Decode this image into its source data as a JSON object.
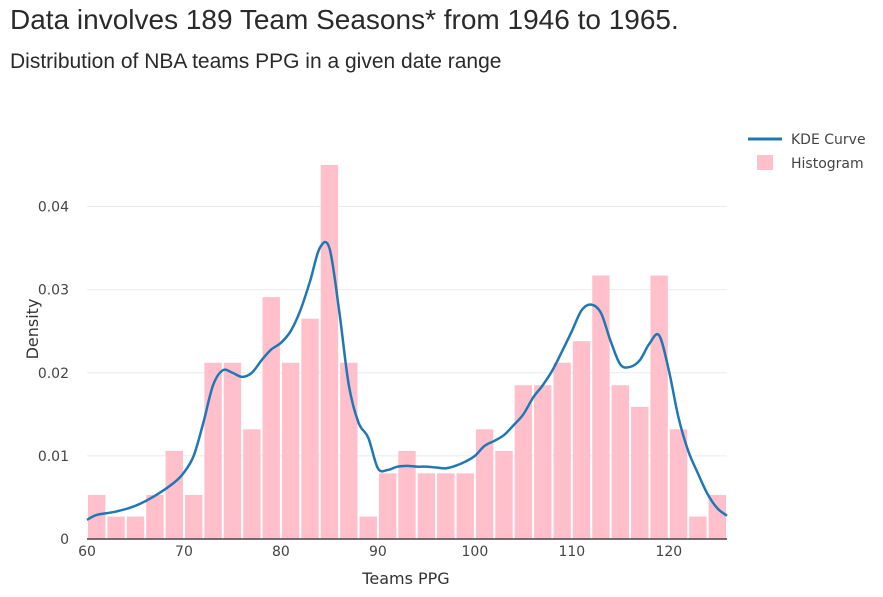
{
  "header": {
    "title": "Data involves 189 Team Seasons* from 1946 to 1965.",
    "subtitle": "Distribution of NBA teams PPG in a given date range"
  },
  "chart_data": {
    "type": "bar",
    "xlabel": "Teams PPG",
    "ylabel": "Density",
    "xlim": [
      60,
      126
    ],
    "ylim": [
      0,
      0.048
    ],
    "xticks": [
      60,
      70,
      80,
      90,
      100,
      110,
      120
    ],
    "xtick_labels": [
      "60",
      "70",
      "80",
      "90",
      "100",
      "110",
      "120"
    ],
    "yticks": [
      0,
      0.01,
      0.02,
      0.03,
      0.04
    ],
    "ytick_labels": [
      "0",
      "0.01",
      "0.02",
      "0.03",
      "0.04"
    ],
    "grid": true,
    "legend_position": "top-right",
    "bin_width": 2,
    "series": [
      {
        "name": "Histogram",
        "kind": "histogram",
        "color": "#ffc0cb",
        "bin_starts": [
          60,
          62,
          64,
          66,
          68,
          70,
          72,
          74,
          76,
          78,
          80,
          82,
          84,
          86,
          88,
          90,
          92,
          94,
          96,
          98,
          100,
          102,
          104,
          106,
          108,
          110,
          112,
          114,
          116,
          118,
          120,
          122,
          124
        ],
        "values": [
          0.0053,
          0.0027,
          0.0027,
          0.0053,
          0.0106,
          0.0053,
          0.0212,
          0.0212,
          0.0132,
          0.0291,
          0.0212,
          0.0265,
          0.045,
          0.0212,
          0.0027,
          0.0079,
          0.0106,
          0.0079,
          0.0079,
          0.0079,
          0.0132,
          0.0106,
          0.0185,
          0.0185,
          0.0212,
          0.0238,
          0.0317,
          0.0185,
          0.0159,
          0.0317,
          0.0132,
          0.0027,
          0.0053
        ]
      },
      {
        "name": "KDE Curve",
        "kind": "line",
        "color": "#1f77b4",
        "x": [
          60,
          61,
          63,
          65,
          67,
          69,
          70,
          71,
          72,
          73,
          74,
          75,
          76,
          77,
          78,
          79,
          80,
          81,
          82,
          83,
          84,
          85,
          86,
          87,
          88,
          89,
          90,
          91,
          92,
          93,
          94,
          95,
          96,
          97,
          98,
          99,
          100,
          101,
          102,
          103,
          104,
          105,
          106,
          107,
          108,
          109,
          110,
          111,
          112,
          113,
          114,
          115,
          116,
          117,
          118,
          119,
          120,
          121,
          122,
          123,
          124,
          125,
          126
        ],
        "y": [
          0.0023,
          0.0029,
          0.0033,
          0.004,
          0.0052,
          0.0068,
          0.008,
          0.01,
          0.014,
          0.0185,
          0.0203,
          0.02,
          0.0195,
          0.02,
          0.0215,
          0.0228,
          0.0236,
          0.025,
          0.0275,
          0.031,
          0.035,
          0.035,
          0.0275,
          0.0185,
          0.014,
          0.0122,
          0.0085,
          0.0083,
          0.0087,
          0.0088,
          0.0087,
          0.0087,
          0.0086,
          0.0085,
          0.0088,
          0.0093,
          0.01,
          0.0112,
          0.0118,
          0.0125,
          0.0137,
          0.015,
          0.017,
          0.0185,
          0.0203,
          0.0226,
          0.025,
          0.0275,
          0.0282,
          0.0272,
          0.0238,
          0.021,
          0.0207,
          0.0215,
          0.0235,
          0.0245,
          0.0203,
          0.0146,
          0.0106,
          0.0079,
          0.0054,
          0.0037,
          0.0028
        ]
      }
    ]
  }
}
